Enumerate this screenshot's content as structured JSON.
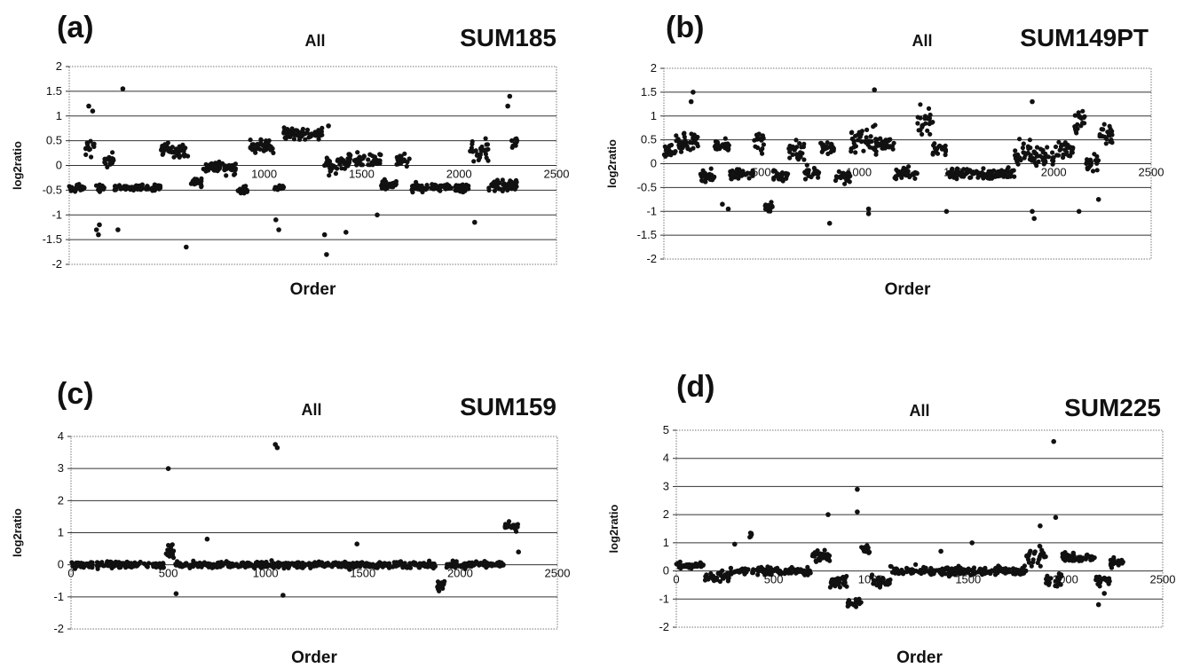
{
  "chart_data": [
    {
      "type": "scatter",
      "panel_label": "(a)",
      "subtitle": "All",
      "title": "SUM185",
      "xlabel": "Order",
      "ylabel": "log2ratio",
      "xlim": [
        0,
        2500
      ],
      "ylim": [
        -2,
        2
      ],
      "yticks": [
        2,
        1.5,
        1,
        0.5,
        0,
        -0.5,
        -1,
        -1.5,
        -2
      ],
      "ytick_labels": [
        "2",
        "1.5",
        "1",
        "0.5",
        "0",
        "-0.5",
        "-1",
        "-1.5",
        "-2"
      ],
      "xticks": [
        1000,
        1500,
        2000,
        2500
      ],
      "xtick_labels": [
        "1000",
        "1500",
        "2000",
        "2500"
      ],
      "grid": true,
      "segments": [
        [
          0,
          80,
          -0.45,
          0.08
        ],
        [
          80,
          130,
          0.35,
          0.12
        ],
        [
          130,
          180,
          -0.45,
          0.08
        ],
        [
          180,
          230,
          0.1,
          0.12
        ],
        [
          230,
          470,
          -0.45,
          0.06
        ],
        [
          470,
          620,
          0.3,
          0.15
        ],
        [
          620,
          680,
          -0.35,
          0.1
        ],
        [
          680,
          860,
          -0.05,
          0.12
        ],
        [
          860,
          920,
          -0.5,
          0.08
        ],
        [
          920,
          1050,
          0.4,
          0.15
        ],
        [
          1050,
          1100,
          -0.45,
          0.08
        ],
        [
          1100,
          1300,
          0.65,
          0.12
        ],
        [
          1300,
          1380,
          0.0,
          0.15
        ],
        [
          1380,
          1600,
          0.1,
          0.15
        ],
        [
          1600,
          1680,
          -0.4,
          0.1
        ],
        [
          1680,
          1750,
          0.1,
          0.12
        ],
        [
          1750,
          2050,
          -0.45,
          0.08
        ],
        [
          2050,
          2150,
          0.3,
          0.2
        ],
        [
          2150,
          2300,
          -0.4,
          0.12
        ],
        [
          2270,
          2300,
          0.5,
          0.25
        ]
      ],
      "outliers": [
        [
          100,
          1.2
        ],
        [
          120,
          1.1
        ],
        [
          140,
          -1.3
        ],
        [
          150,
          -1.4
        ],
        [
          155,
          -1.2
        ],
        [
          250,
          -1.3
        ],
        [
          275,
          1.55
        ],
        [
          600,
          -1.65
        ],
        [
          1060,
          -1.1
        ],
        [
          1075,
          -1.3
        ],
        [
          1310,
          -1.4
        ],
        [
          1320,
          -1.8
        ],
        [
          1330,
          0.8
        ],
        [
          1420,
          -1.35
        ],
        [
          1580,
          -1.0
        ],
        [
          2080,
          -1.15
        ],
        [
          2260,
          1.4
        ],
        [
          2250,
          1.2
        ]
      ]
    },
    {
      "type": "scatter",
      "panel_label": "(b)",
      "subtitle": "All",
      "title": "SUM149PT",
      "xlabel": "Order",
      "ylabel": "log2ratio",
      "xlim": [
        0,
        2500
      ],
      "ylim": [
        -2,
        2
      ],
      "yticks": [
        2,
        1.5,
        1,
        0.5,
        0,
        -0.5,
        -1,
        -1.5,
        -2
      ],
      "ytick_labels": [
        "2",
        "1.5",
        "1",
        "0.5",
        "0",
        "-0.5",
        "-1",
        "-1.5",
        "-2"
      ],
      "xticks": [
        500,
        1000,
        1500,
        2000,
        2500
      ],
      "xtick_labels": [
        "500",
        "1000",
        "1500",
        "2000",
        "2500"
      ],
      "grid": true,
      "segments": [
        [
          0,
          60,
          0.25,
          0.15
        ],
        [
          60,
          180,
          0.45,
          0.2
        ],
        [
          180,
          260,
          -0.25,
          0.12
        ],
        [
          260,
          340,
          0.35,
          0.15
        ],
        [
          340,
          460,
          -0.2,
          0.12
        ],
        [
          460,
          520,
          0.5,
          0.25
        ],
        [
          520,
          560,
          -0.9,
          0.12
        ],
        [
          560,
          640,
          -0.25,
          0.12
        ],
        [
          640,
          720,
          0.25,
          0.2
        ],
        [
          720,
          800,
          -0.2,
          0.15
        ],
        [
          800,
          880,
          0.35,
          0.12
        ],
        [
          880,
          960,
          -0.25,
          0.15
        ],
        [
          960,
          1100,
          0.45,
          0.3
        ],
        [
          1100,
          1180,
          0.4,
          0.12
        ],
        [
          1180,
          1300,
          -0.2,
          0.12
        ],
        [
          1300,
          1380,
          0.9,
          0.3
        ],
        [
          1380,
          1450,
          0.3,
          0.15
        ],
        [
          1450,
          1800,
          -0.2,
          0.12
        ],
        [
          1800,
          1880,
          0.25,
          0.25
        ],
        [
          1880,
          2000,
          0.15,
          0.2
        ],
        [
          2000,
          2100,
          0.3,
          0.2
        ],
        [
          2100,
          2160,
          0.9,
          0.3
        ],
        [
          2160,
          2230,
          0.0,
          0.15
        ],
        [
          2230,
          2300,
          0.6,
          0.3
        ]
      ],
      "outliers": [
        [
          150,
          1.5
        ],
        [
          140,
          1.3
        ],
        [
          330,
          -0.95
        ],
        [
          300,
          -0.85
        ],
        [
          850,
          -1.25
        ],
        [
          1050,
          -0.95
        ],
        [
          1050,
          -1.05
        ],
        [
          1080,
          1.55
        ],
        [
          1450,
          -1.0
        ],
        [
          1890,
          -1.0
        ],
        [
          1900,
          -1.15
        ],
        [
          1890,
          1.3
        ],
        [
          2130,
          -1.0
        ],
        [
          2230,
          -0.75
        ]
      ]
    },
    {
      "type": "scatter",
      "panel_label": "(c)",
      "subtitle": "All",
      "title": "SUM159",
      "xlabel": "Order",
      "ylabel": "log2ratio",
      "xlim": [
        0,
        2500
      ],
      "ylim": [
        -2,
        4
      ],
      "yticks": [
        4,
        3,
        2,
        1,
        0,
        -1,
        -2
      ],
      "ytick_labels": [
        "4",
        "3",
        "2",
        "1",
        "0",
        "-1",
        "-2"
      ],
      "xticks": [
        0,
        500,
        1000,
        1500,
        2000,
        2500
      ],
      "xtick_labels": [
        "0",
        "500",
        "1000",
        "1500",
        "2000",
        "2500"
      ],
      "grid": true,
      "segments": [
        [
          0,
          480,
          0.0,
          0.1
        ],
        [
          480,
          530,
          0.4,
          0.25
        ],
        [
          530,
          1880,
          0.0,
          0.1
        ],
        [
          1880,
          1930,
          -0.6,
          0.25
        ],
        [
          1930,
          2230,
          0.0,
          0.1
        ],
        [
          2230,
          2300,
          1.2,
          0.15
        ]
      ],
      "outliers": [
        [
          500,
          3.0
        ],
        [
          1050,
          3.75
        ],
        [
          1060,
          3.65
        ],
        [
          540,
          -0.9
        ],
        [
          700,
          0.8
        ],
        [
          1090,
          -0.95
        ],
        [
          1470,
          0.65
        ],
        [
          2300,
          0.4
        ]
      ]
    },
    {
      "type": "scatter",
      "panel_label": "(d)",
      "subtitle": "All",
      "title": "SUM225",
      "xlabel": "Order",
      "ylabel": "log2ratio",
      "xlim": [
        0,
        2500
      ],
      "ylim": [
        -2,
        5
      ],
      "yticks": [
        5,
        4,
        3,
        2,
        1,
        0,
        -1,
        -2
      ],
      "ytick_labels": [
        "5",
        "4",
        "3",
        "2",
        "1",
        "0",
        "-1",
        "-2"
      ],
      "xticks": [
        0,
        500,
        1000,
        1500,
        2000,
        2500
      ],
      "xtick_labels": [
        "0",
        "500",
        "1000",
        "1500",
        "2000",
        "2500"
      ],
      "grid": true,
      "segments": [
        [
          0,
          140,
          0.2,
          0.1
        ],
        [
          140,
          270,
          -0.2,
          0.2
        ],
        [
          270,
          370,
          0.0,
          0.15
        ],
        [
          370,
          390,
          1.3,
          0.1
        ],
        [
          390,
          700,
          0.0,
          0.15
        ],
        [
          700,
          790,
          0.5,
          0.25
        ],
        [
          790,
          880,
          -0.4,
          0.25
        ],
        [
          880,
          950,
          -1.1,
          0.15
        ],
        [
          950,
          1000,
          0.8,
          0.2
        ],
        [
          1000,
          1100,
          -0.4,
          0.2
        ],
        [
          1100,
          1600,
          0.0,
          0.15
        ],
        [
          1600,
          1800,
          0.0,
          0.15
        ],
        [
          1800,
          1900,
          0.5,
          0.35
        ],
        [
          1900,
          1980,
          -0.3,
          0.3
        ],
        [
          1980,
          2150,
          0.5,
          0.15
        ],
        [
          2150,
          2230,
          -0.3,
          0.2
        ],
        [
          2230,
          2300,
          0.3,
          0.2
        ]
      ],
      "outliers": [
        [
          1940,
          4.6
        ],
        [
          930,
          2.9
        ],
        [
          930,
          2.1
        ],
        [
          780,
          2.0
        ],
        [
          1950,
          1.9
        ],
        [
          1870,
          1.6
        ],
        [
          300,
          0.95
        ],
        [
          1360,
          0.7
        ],
        [
          2170,
          -1.2
        ],
        [
          2200,
          -0.8
        ],
        [
          1520,
          1.0
        ]
      ]
    }
  ]
}
